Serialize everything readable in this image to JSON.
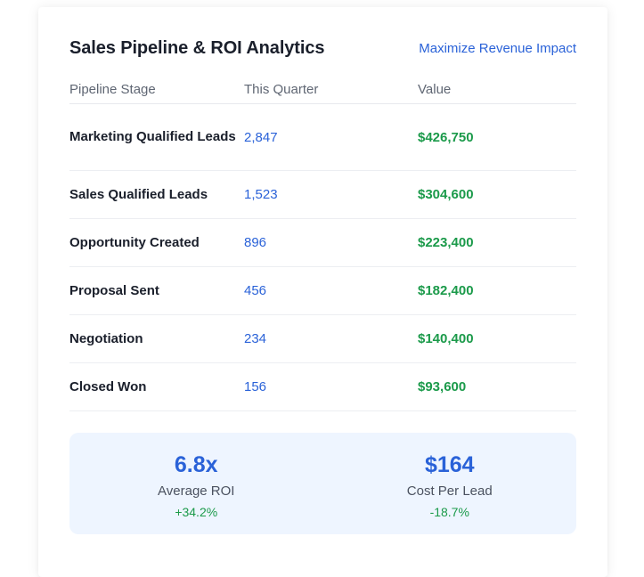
{
  "header": {
    "title": "Sales Pipeline & ROI Analytics",
    "link_label": "Maximize Revenue Impact"
  },
  "table": {
    "columns": [
      "Pipeline Stage",
      "This Quarter",
      "Value"
    ],
    "rows": [
      {
        "stage": "Marketing Qualified Leads",
        "count": "2,847",
        "value": "$426,750"
      },
      {
        "stage": "Sales Qualified Leads",
        "count": "1,523",
        "value": "$304,600"
      },
      {
        "stage": "Opportunity Created",
        "count": "896",
        "value": "$223,400"
      },
      {
        "stage": "Proposal Sent",
        "count": "456",
        "value": "$182,400"
      },
      {
        "stage": "Negotiation",
        "count": "234",
        "value": "$140,400"
      },
      {
        "stage": "Closed Won",
        "count": "156",
        "value": "$93,600"
      }
    ]
  },
  "summary": {
    "metrics": [
      {
        "value": "6.8x",
        "label": "Average ROI",
        "change": "+34.2%"
      },
      {
        "value": "$164",
        "label": "Cost Per Lead",
        "change": "-18.7%"
      }
    ]
  },
  "colors": {
    "accent_blue": "#2a62d8",
    "positive_green": "#1b9a4a",
    "summary_bg": "#eef5ff"
  }
}
